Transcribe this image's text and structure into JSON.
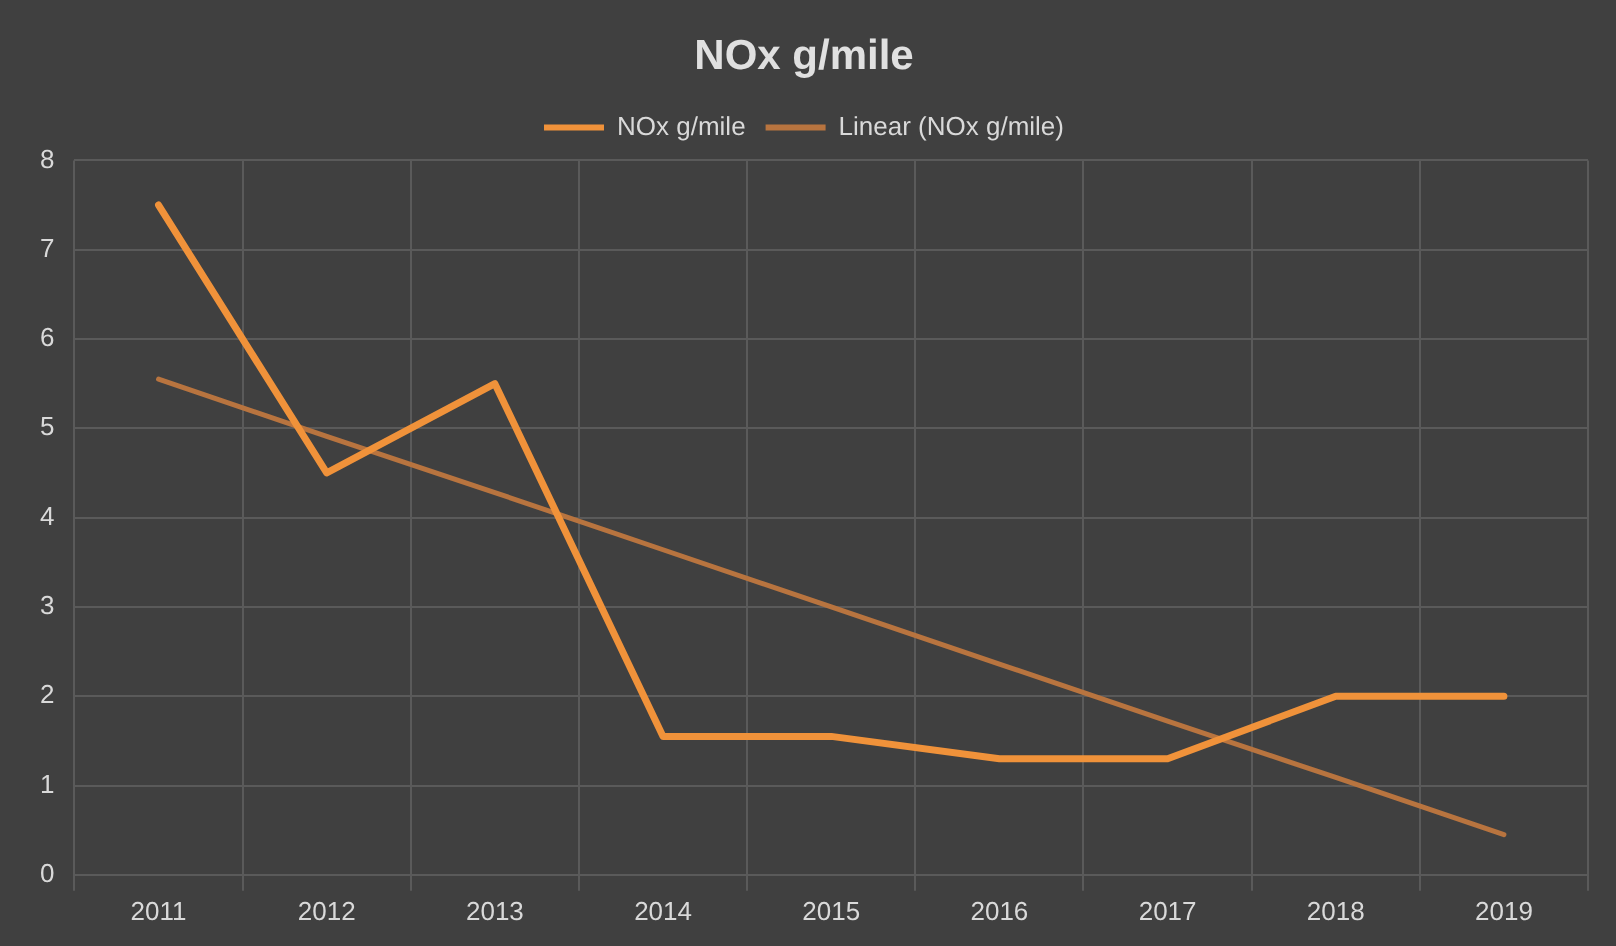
{
  "chart_data": {
    "type": "line",
    "title": "NOx g/mile",
    "categories": [
      "2011",
      "2012",
      "2013",
      "2014",
      "2015",
      "2016",
      "2017",
      "2018",
      "2019"
    ],
    "series": [
      {
        "name": "NOx g/mile",
        "color": "#f0923a",
        "values": [
          7.5,
          4.5,
          5.5,
          1.55,
          1.55,
          1.3,
          1.3,
          2.0,
          2.0
        ]
      },
      {
        "name": "Linear (NOx g/mile)",
        "color": "#b8743f",
        "values": [
          5.55,
          4.91,
          4.28,
          3.64,
          3.0,
          2.36,
          1.72,
          1.09,
          0.45
        ]
      }
    ],
    "ylim": [
      0,
      8
    ],
    "yticks": [
      0,
      1,
      2,
      3,
      4,
      5,
      6,
      7,
      8
    ],
    "grid": true,
    "legend": "top",
    "marker": "none",
    "line_style": "solid"
  }
}
